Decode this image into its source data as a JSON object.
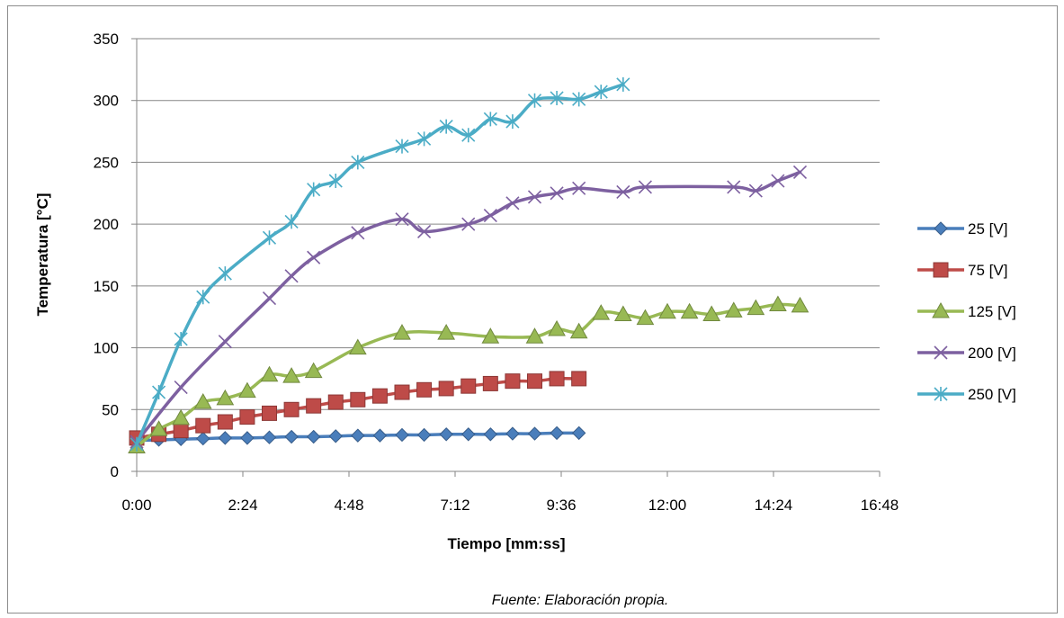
{
  "chart_data": {
    "type": "line",
    "title": "",
    "xlabel": "Tiempo [mm:ss]",
    "ylabel": "Temperatura [°C]",
    "x_unit": "mm:ss",
    "xlim": [
      "0:00",
      "16:48"
    ],
    "ylim": [
      0,
      350
    ],
    "x_ticks": [
      "0:00",
      "2:24",
      "4:48",
      "7:12",
      "9:36",
      "12:00",
      "14:24",
      "16:48"
    ],
    "y_ticks": [
      "0",
      "50",
      "100",
      "150",
      "200",
      "250",
      "300",
      "350"
    ],
    "grid": "horizontal",
    "legend_position": "right",
    "series": [
      {
        "name": "25 [V]",
        "color": "#4a7ebb",
        "marker": "diamond",
        "points": [
          [
            "0:00",
            25
          ],
          [
            "0:30",
            25.5
          ],
          [
            "1:00",
            26
          ],
          [
            "1:30",
            26.5
          ],
          [
            "2:00",
            27
          ],
          [
            "2:30",
            27
          ],
          [
            "3:00",
            27.5
          ],
          [
            "3:30",
            28
          ],
          [
            "4:00",
            28
          ],
          [
            "4:30",
            28.5
          ],
          [
            "5:00",
            29
          ],
          [
            "5:30",
            29
          ],
          [
            "6:00",
            29.5
          ],
          [
            "6:30",
            29.5
          ],
          [
            "7:00",
            30
          ],
          [
            "7:30",
            30
          ],
          [
            "8:00",
            30
          ],
          [
            "8:30",
            30.5
          ],
          [
            "9:00",
            30.5
          ],
          [
            "9:30",
            31
          ],
          [
            "10:00",
            31
          ]
        ]
      },
      {
        "name": "75 [V]",
        "color": "#be4b48",
        "marker": "square",
        "points": [
          [
            "0:00",
            27
          ],
          [
            "0:30",
            30
          ],
          [
            "1:00",
            33
          ],
          [
            "1:30",
            37
          ],
          [
            "2:00",
            40
          ],
          [
            "2:30",
            44
          ],
          [
            "3:00",
            47
          ],
          [
            "3:30",
            50
          ],
          [
            "4:00",
            53
          ],
          [
            "4:30",
            56
          ],
          [
            "5:00",
            58
          ],
          [
            "5:30",
            61
          ],
          [
            "6:00",
            64
          ],
          [
            "6:30",
            66
          ],
          [
            "7:00",
            67
          ],
          [
            "7:30",
            69
          ],
          [
            "8:00",
            71
          ],
          [
            "8:30",
            73
          ],
          [
            "9:00",
            73
          ],
          [
            "9:30",
            75
          ],
          [
            "10:00",
            75
          ]
        ]
      },
      {
        "name": "125 [V]",
        "color": "#98b954",
        "marker": "triangle",
        "points": [
          [
            "0:00",
            20
          ],
          [
            "0:30",
            34
          ],
          [
            "1:00",
            43
          ],
          [
            "1:30",
            56
          ],
          [
            "2:00",
            59
          ],
          [
            "2:30",
            65
          ],
          [
            "3:00",
            78
          ],
          [
            "3:30",
            77
          ],
          [
            "4:00",
            81
          ],
          [
            "5:00",
            100
          ],
          [
            "6:00",
            112
          ],
          [
            "7:00",
            112
          ],
          [
            "8:00",
            109
          ],
          [
            "9:00",
            109
          ],
          [
            "9:30",
            115
          ],
          [
            "10:00",
            113
          ],
          [
            "10:30",
            128
          ],
          [
            "11:00",
            127
          ],
          [
            "11:30",
            124
          ],
          [
            "12:00",
            129
          ],
          [
            "12:30",
            129
          ],
          [
            "13:00",
            127
          ],
          [
            "13:30",
            130
          ],
          [
            "14:00",
            132
          ],
          [
            "14:30",
            135
          ],
          [
            "15:00",
            134
          ]
        ]
      },
      {
        "name": "200 [V]",
        "color": "#7d60a0",
        "marker": "x",
        "points": [
          [
            "0:00",
            24
          ],
          [
            "1:00",
            68
          ],
          [
            "2:00",
            105
          ],
          [
            "3:00",
            140
          ],
          [
            "3:30",
            158
          ],
          [
            "4:00",
            173
          ],
          [
            "5:00",
            193
          ],
          [
            "6:00",
            204
          ],
          [
            "6:30",
            194
          ],
          [
            "7:30",
            200
          ],
          [
            "8:00",
            207
          ],
          [
            "8:30",
            217
          ],
          [
            "9:00",
            222
          ],
          [
            "9:30",
            225
          ],
          [
            "10:00",
            229
          ],
          [
            "11:00",
            226
          ],
          [
            "11:30",
            230
          ],
          [
            "13:30",
            230
          ],
          [
            "14:00",
            227
          ],
          [
            "14:30",
            235
          ],
          [
            "15:00",
            242
          ]
        ]
      },
      {
        "name": "250 [V]",
        "color": "#4bacc6",
        "marker": "asterisk",
        "points": [
          [
            "0:00",
            22
          ],
          [
            "0:30",
            64
          ],
          [
            "1:00",
            107
          ],
          [
            "1:30",
            141
          ],
          [
            "2:00",
            160
          ],
          [
            "3:00",
            189
          ],
          [
            "3:30",
            202
          ],
          [
            "4:00",
            228
          ],
          [
            "4:30",
            235
          ],
          [
            "5:00",
            250
          ],
          [
            "6:00",
            263
          ],
          [
            "6:30",
            269
          ],
          [
            "7:00",
            279
          ],
          [
            "7:30",
            272
          ],
          [
            "8:00",
            285
          ],
          [
            "8:30",
            283
          ],
          [
            "9:00",
            300
          ],
          [
            "9:30",
            302
          ],
          [
            "10:00",
            301
          ],
          [
            "10:30",
            307
          ],
          [
            "11:00",
            313
          ]
        ]
      }
    ],
    "source_note": "Fuente: Elaboración propia."
  }
}
